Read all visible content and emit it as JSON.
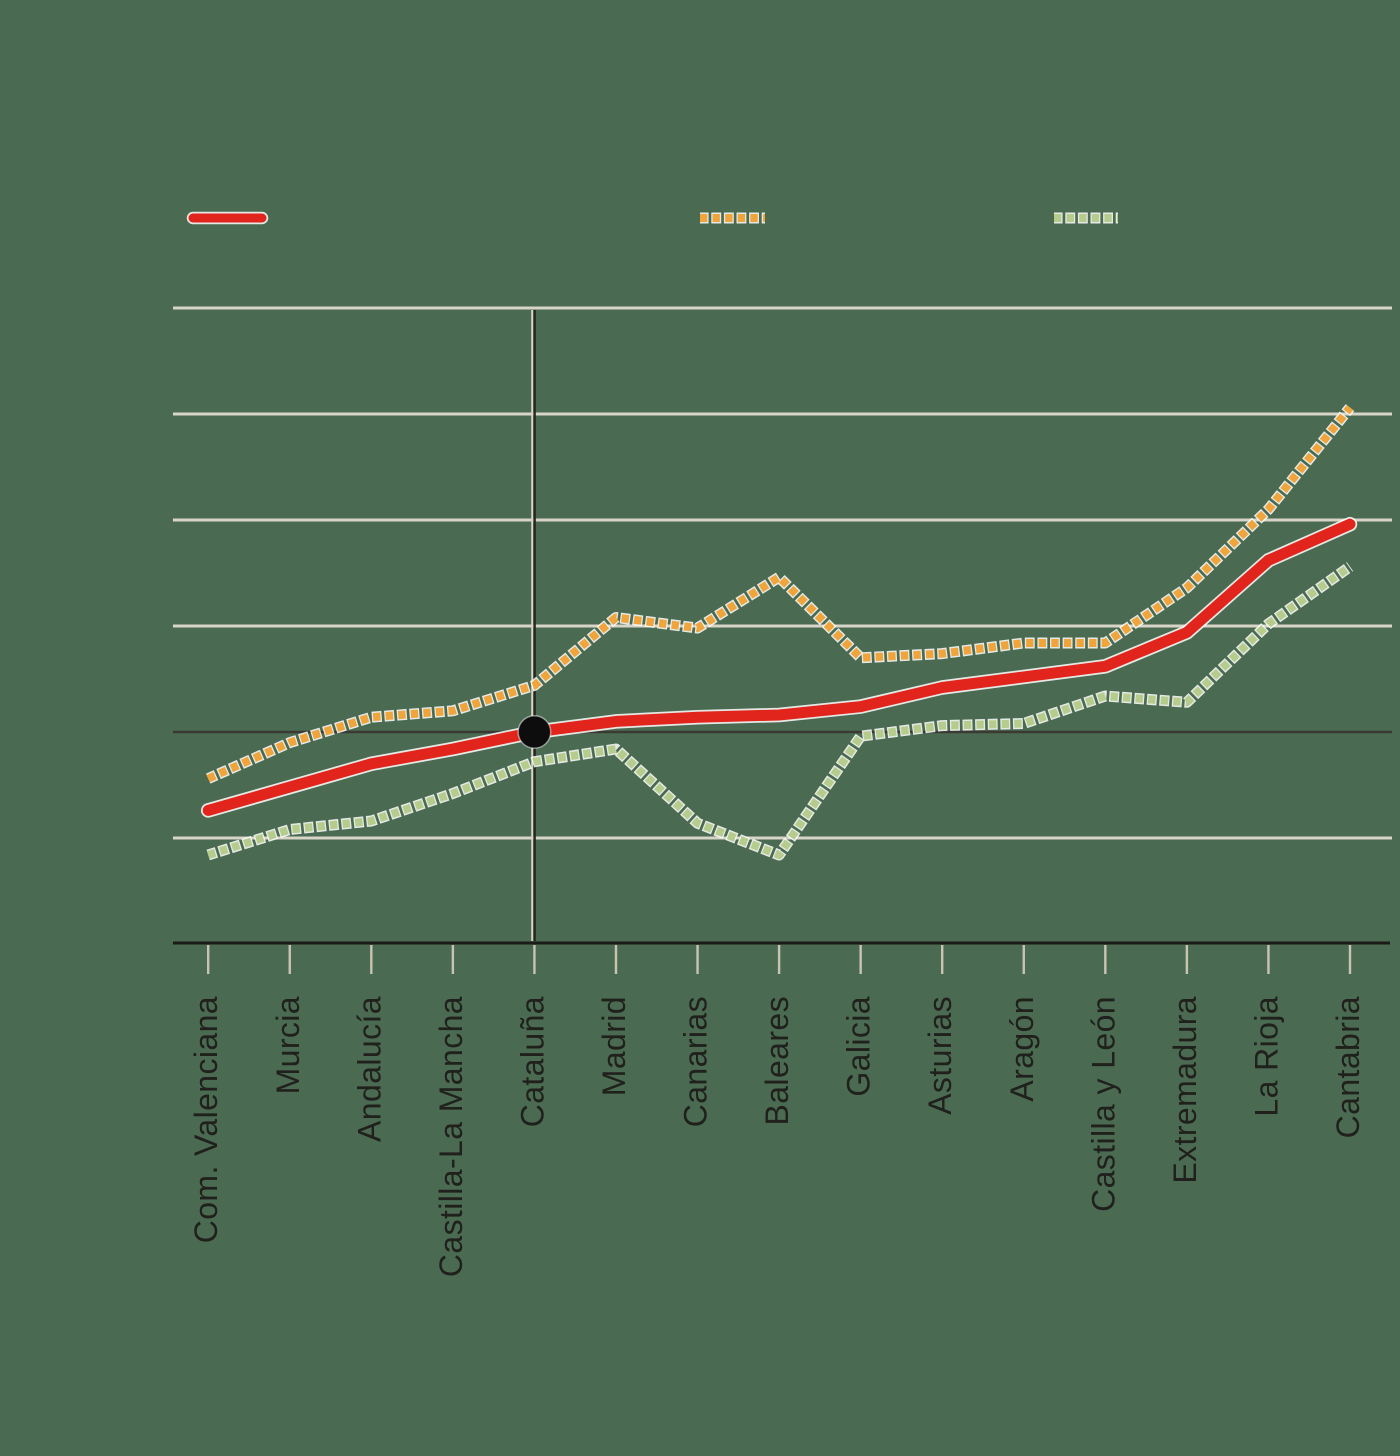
{
  "colors": {
    "background": "#4a6b52",
    "red_series": "#e2251c",
    "orange_series": "#f0a43c",
    "green_series": "#b6cc8d",
    "gridline_light": "#d8d4c8",
    "gridline_dark": "#3a3a33",
    "reference_vline_dark": "#26261f",
    "reference_vline_light": "#d8d4c8",
    "axis_line": "#1b1b17",
    "tick": "#cac3b2",
    "label_text": "#20201c",
    "marker_dot": "#0d0d0d",
    "line_halo": "#ffffff"
  },
  "legend": {
    "items": [
      {
        "label": "",
        "series": "red-solid"
      },
      {
        "label": "",
        "series": "orange-dotted"
      },
      {
        "label": "",
        "series": "green-dotted"
      }
    ]
  },
  "chart_data": {
    "type": "line",
    "title": "",
    "xlabel": "",
    "ylabel": "",
    "categories": [
      "Com. Valenciana",
      "Murcia",
      "Andalucía",
      "Castilla-La Mancha",
      "Cataluña",
      "Madrid",
      "Canarias",
      "Baleares",
      "Galicia",
      "Asturias",
      "Aragón",
      "Castilla y León",
      "Extremadura",
      "La Rioja",
      "Cantabria"
    ],
    "series": [
      {
        "name": "red-solid",
        "color": "#e2251c",
        "style": "solid",
        "values": [
          96.3,
          97.4,
          98.5,
          99.2,
          100.0,
          100.5,
          100.7,
          100.8,
          101.2,
          102.1,
          102.6,
          103.1,
          104.7,
          108.1,
          109.8
        ]
      },
      {
        "name": "orange-dotted",
        "color": "#f0a43c",
        "style": "dashed",
        "values": [
          97.8,
          99.5,
          100.7,
          101.0,
          102.2,
          105.4,
          104.9,
          107.3,
          103.5,
          103.7,
          104.2,
          104.2,
          106.8,
          110.5,
          115.3
        ]
      },
      {
        "name": "green-dotted",
        "color": "#b6cc8d",
        "style": "dashed",
        "values": [
          94.2,
          95.4,
          95.8,
          97.1,
          98.6,
          99.2,
          95.7,
          94.2,
          99.8,
          100.3,
          100.4,
          101.7,
          101.4,
          105.1,
          107.8
        ]
      }
    ],
    "y_axis": {
      "gridline_values": [
        120,
        115,
        110,
        105,
        100,
        95
      ],
      "tick_labels_visible": false,
      "grid": true
    },
    "x_axis": {
      "labels_rotation": -90,
      "tick_labels_visible": true
    },
    "reference": {
      "category": "Cataluña",
      "value": 100.0,
      "marker": "black-dot",
      "vertical_line": true,
      "baseline_highlighted": true
    },
    "legend_position": "top"
  }
}
